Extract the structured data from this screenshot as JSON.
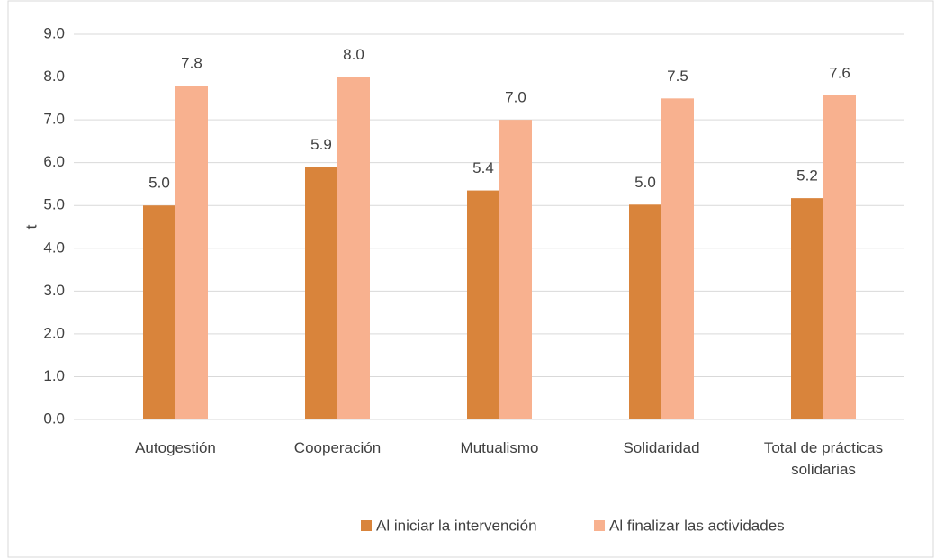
{
  "chart_data": {
    "type": "bar",
    "y_label": "t",
    "categories": [
      "Autogestión",
      "Cooperación",
      "Mutualismo",
      "Solidaridad",
      "Total de prácticas solidarias"
    ],
    "series": [
      {
        "name": "Al iniciar la intervención",
        "color": "#d9843b",
        "values": [
          5.0,
          5.9,
          5.35,
          5.02,
          5.17
        ],
        "value_labels": [
          "5.0",
          "5.9",
          "5.4",
          "5.0",
          "5.2"
        ]
      },
      {
        "name": "Al finalizar las actividades",
        "color": "#f8b18f",
        "values": [
          7.8,
          8.0,
          7.0,
          7.5,
          7.57
        ],
        "value_labels": [
          "7.8",
          "8.0",
          "7.0",
          "7.5",
          "7.6"
        ]
      }
    ],
    "ylim": [
      0,
      9
    ],
    "yticks": [
      {
        "value": 0,
        "label": "0.0"
      },
      {
        "value": 1,
        "label": "1.0"
      },
      {
        "value": 2,
        "label": "2.0"
      },
      {
        "value": 3,
        "label": "3.0"
      },
      {
        "value": 4,
        "label": "4.0"
      },
      {
        "value": 5,
        "label": "5.0"
      },
      {
        "value": 6,
        "label": "6.0"
      },
      {
        "value": 7,
        "label": "7.0"
      },
      {
        "value": 8,
        "label": "8.0"
      },
      {
        "value": 9,
        "label": "9.0"
      }
    ],
    "grid": true,
    "legend": "bottom"
  }
}
